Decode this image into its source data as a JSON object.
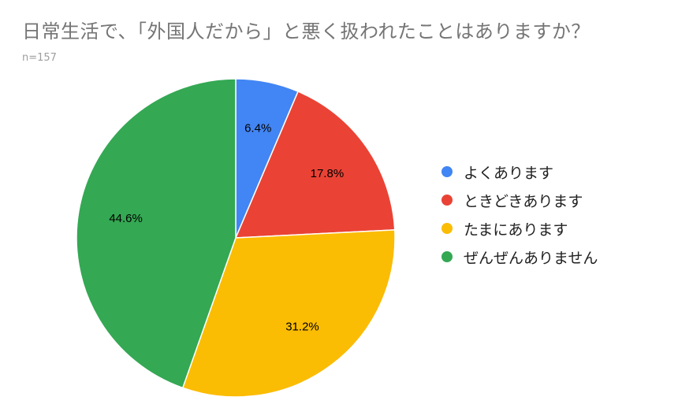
{
  "chart_data": {
    "type": "pie",
    "title": "日常生活で、「外国人だから」と悪く扱われたことはありますか？",
    "subtitle": "n=157",
    "legend_position": "right",
    "slices": [
      {
        "label": "よくあります",
        "value": 6.4,
        "value_label": "6.4%",
        "color": "#4285f4"
      },
      {
        "label": "ときどきあります",
        "value": 17.8,
        "value_label": "17.8%",
        "color": "#ea4335"
      },
      {
        "label": "たまにあります",
        "value": 31.2,
        "value_label": "31.2%",
        "color": "#fbbc04"
      },
      {
        "label": "ぜんぜんありません",
        "value": 44.6,
        "value_label": "44.6%",
        "color": "#34a853"
      }
    ]
  }
}
